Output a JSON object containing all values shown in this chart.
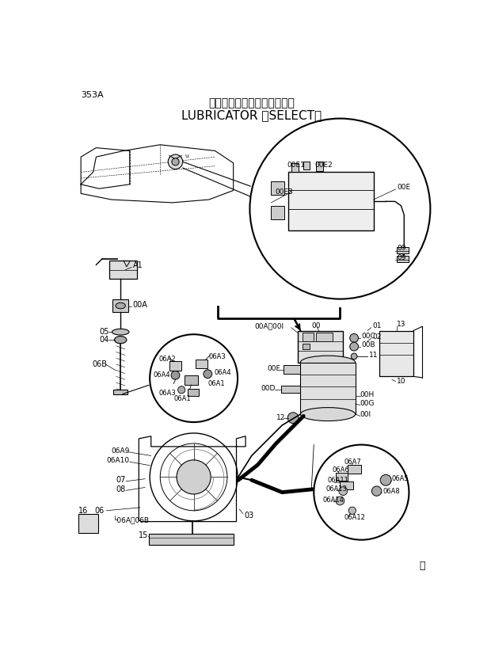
{
  "bg_color": "#ffffff",
  "figsize": [
    6.2,
    8.17
  ],
  "dpi": 100,
  "page_label": "353A",
  "title_jp": "リューブリケータ　〈選択〉",
  "title_en": "LUBRICATOR 〈SELECT〉",
  "M_mark": "Ⓜ"
}
